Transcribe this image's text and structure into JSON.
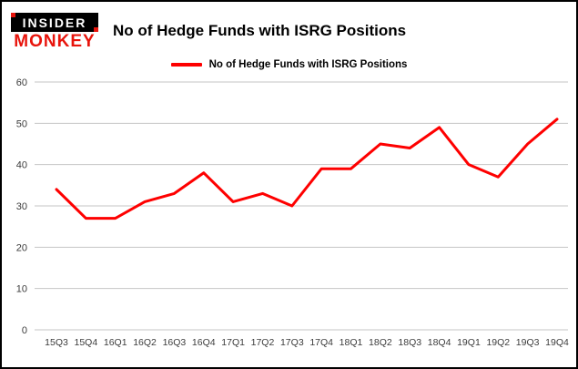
{
  "brand": {
    "line1": "INSIDER",
    "line2": "MONKEY"
  },
  "title": "No of Hedge Funds with ISRG Positions",
  "legend": {
    "label": "No of Hedge Funds with ISRG Positions",
    "color": "#fe0000"
  },
  "colors": {
    "line": "#fe0000",
    "grid": "#c6c6c6",
    "border": "#000000",
    "background": "#ffffff"
  },
  "chart_data": {
    "type": "line",
    "title": "No of Hedge Funds with ISRG Positions",
    "categories": [
      "15Q3",
      "15Q4",
      "16Q1",
      "16Q2",
      "16Q3",
      "16Q4",
      "17Q1",
      "17Q2",
      "17Q3",
      "17Q4",
      "18Q1",
      "18Q2",
      "18Q3",
      "18Q4",
      "19Q1",
      "19Q2",
      "19Q3",
      "19Q4"
    ],
    "values": [
      34,
      27,
      27,
      31,
      33,
      38,
      31,
      33,
      30,
      39,
      39,
      45,
      44,
      49,
      40,
      37,
      45,
      51
    ],
    "xlabel": "",
    "ylabel": "",
    "ylim": [
      0,
      60
    ],
    "yticks": [
      0,
      10,
      20,
      30,
      40,
      50,
      60
    ],
    "grid": true,
    "legend_position": "top",
    "line_color": "#fe0000"
  }
}
